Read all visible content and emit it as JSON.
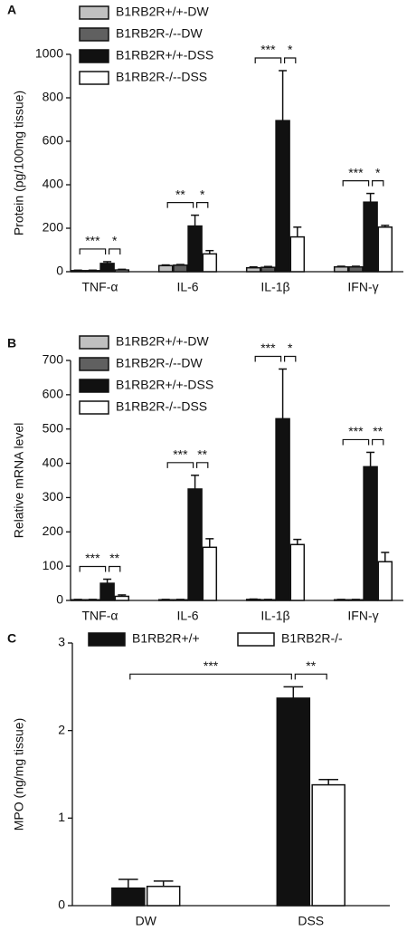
{
  "chart_data": [
    {
      "type": "bar",
      "panel": "A",
      "ylabel": "Protein (pg/100mg tissue)",
      "categories": [
        "TNF-α",
        "IL-6",
        "IL-1β",
        "IFN-γ"
      ],
      "ylim": [
        0,
        1000
      ],
      "yticks": [
        0,
        200,
        400,
        600,
        800,
        1000
      ],
      "series": [
        {
          "name": "B1RB2R+/+-DW",
          "color": "#c0c0c0",
          "values": [
            5,
            28,
            18,
            22
          ],
          "errors": [
            2,
            3,
            4,
            3
          ]
        },
        {
          "name": "B1RB2R-/--DW",
          "color": "#606060",
          "values": [
            5,
            30,
            20,
            22
          ],
          "errors": [
            2,
            3,
            4,
            3
          ]
        },
        {
          "name": "B1RB2R+/+-DSS",
          "color": "#111111",
          "values": [
            38,
            210,
            695,
            320
          ],
          "errors": [
            8,
            50,
            230,
            40
          ]
        },
        {
          "name": "B1RB2R-/--DSS",
          "color": "#ffffff",
          "values": [
            8,
            82,
            160,
            205
          ],
          "errors": [
            3,
            15,
            45,
            8
          ]
        }
      ],
      "annotations": [
        {
          "label": "***",
          "from": [
            0,
            0
          ],
          "to": [
            0,
            2
          ]
        },
        {
          "label": "*",
          "from": [
            0,
            2
          ],
          "to": [
            0,
            3
          ]
        },
        {
          "label": "**",
          "from": [
            1,
            0
          ],
          "to": [
            1,
            2
          ]
        },
        {
          "label": "*",
          "from": [
            1,
            2
          ],
          "to": [
            1,
            3
          ]
        },
        {
          "label": "***",
          "from": [
            2,
            0
          ],
          "to": [
            2,
            2
          ]
        },
        {
          "label": "*",
          "from": [
            2,
            2
          ],
          "to": [
            2,
            3
          ]
        },
        {
          "label": "***",
          "from": [
            3,
            0
          ],
          "to": [
            3,
            2
          ]
        },
        {
          "label": "*",
          "from": [
            3,
            2
          ],
          "to": [
            3,
            3
          ]
        }
      ]
    },
    {
      "type": "bar",
      "panel": "B",
      "ylabel": "Relative mRNA level",
      "categories": [
        "TNF-α",
        "IL-6",
        "IL-1β",
        "IFN-γ"
      ],
      "ylim": [
        0,
        700
      ],
      "yticks": [
        0,
        100,
        200,
        300,
        400,
        500,
        600,
        700
      ],
      "series": [
        {
          "name": "B1RB2R+/+-DW",
          "color": "#c0c0c0",
          "values": [
            2,
            2,
            3,
            2
          ],
          "errors": [
            1,
            1,
            1,
            1
          ]
        },
        {
          "name": "B1RB2R-/--DW",
          "color": "#606060",
          "values": [
            2,
            2,
            2,
            2
          ],
          "errors": [
            1,
            1,
            1,
            1
          ]
        },
        {
          "name": "B1RB2R+/+-DSS",
          "color": "#111111",
          "values": [
            50,
            325,
            530,
            390
          ],
          "errors": [
            12,
            40,
            145,
            42
          ]
        },
        {
          "name": "B1RB2R-/--DSS",
          "color": "#ffffff",
          "values": [
            12,
            155,
            163,
            113
          ],
          "errors": [
            4,
            25,
            15,
            27
          ]
        }
      ],
      "annotations": [
        {
          "label": "***",
          "from": [
            0,
            0
          ],
          "to": [
            0,
            2
          ]
        },
        {
          "label": "**",
          "from": [
            0,
            2
          ],
          "to": [
            0,
            3
          ]
        },
        {
          "label": "***",
          "from": [
            1,
            0
          ],
          "to": [
            1,
            2
          ]
        },
        {
          "label": "**",
          "from": [
            1,
            2
          ],
          "to": [
            1,
            3
          ]
        },
        {
          "label": "***",
          "from": [
            2,
            0
          ],
          "to": [
            2,
            2
          ]
        },
        {
          "label": "*",
          "from": [
            2,
            2
          ],
          "to": [
            2,
            3
          ]
        },
        {
          "label": "***",
          "from": [
            3,
            0
          ],
          "to": [
            3,
            2
          ]
        },
        {
          "label": "**",
          "from": [
            3,
            2
          ],
          "to": [
            3,
            3
          ]
        }
      ]
    },
    {
      "type": "bar",
      "panel": "C",
      "ylabel": "MPO (ng/mg tissue)",
      "categories": [
        "DW",
        "DSS"
      ],
      "ylim": [
        0,
        3
      ],
      "yticks": [
        0,
        1,
        2,
        3
      ],
      "series": [
        {
          "name": "B1RB2R+/+",
          "color": "#111111",
          "values": [
            0.2,
            2.37
          ],
          "errors": [
            0.1,
            0.13
          ]
        },
        {
          "name": "B1RB2R-/-",
          "color": "#ffffff",
          "values": [
            0.22,
            1.38
          ],
          "errors": [
            0.06,
            0.06
          ]
        }
      ],
      "annotations": [
        {
          "label": "***",
          "from": [
            0,
            0
          ],
          "to": [
            1,
            0
          ]
        },
        {
          "label": "**",
          "from": [
            1,
            0
          ],
          "to": [
            1,
            1
          ]
        }
      ]
    }
  ]
}
